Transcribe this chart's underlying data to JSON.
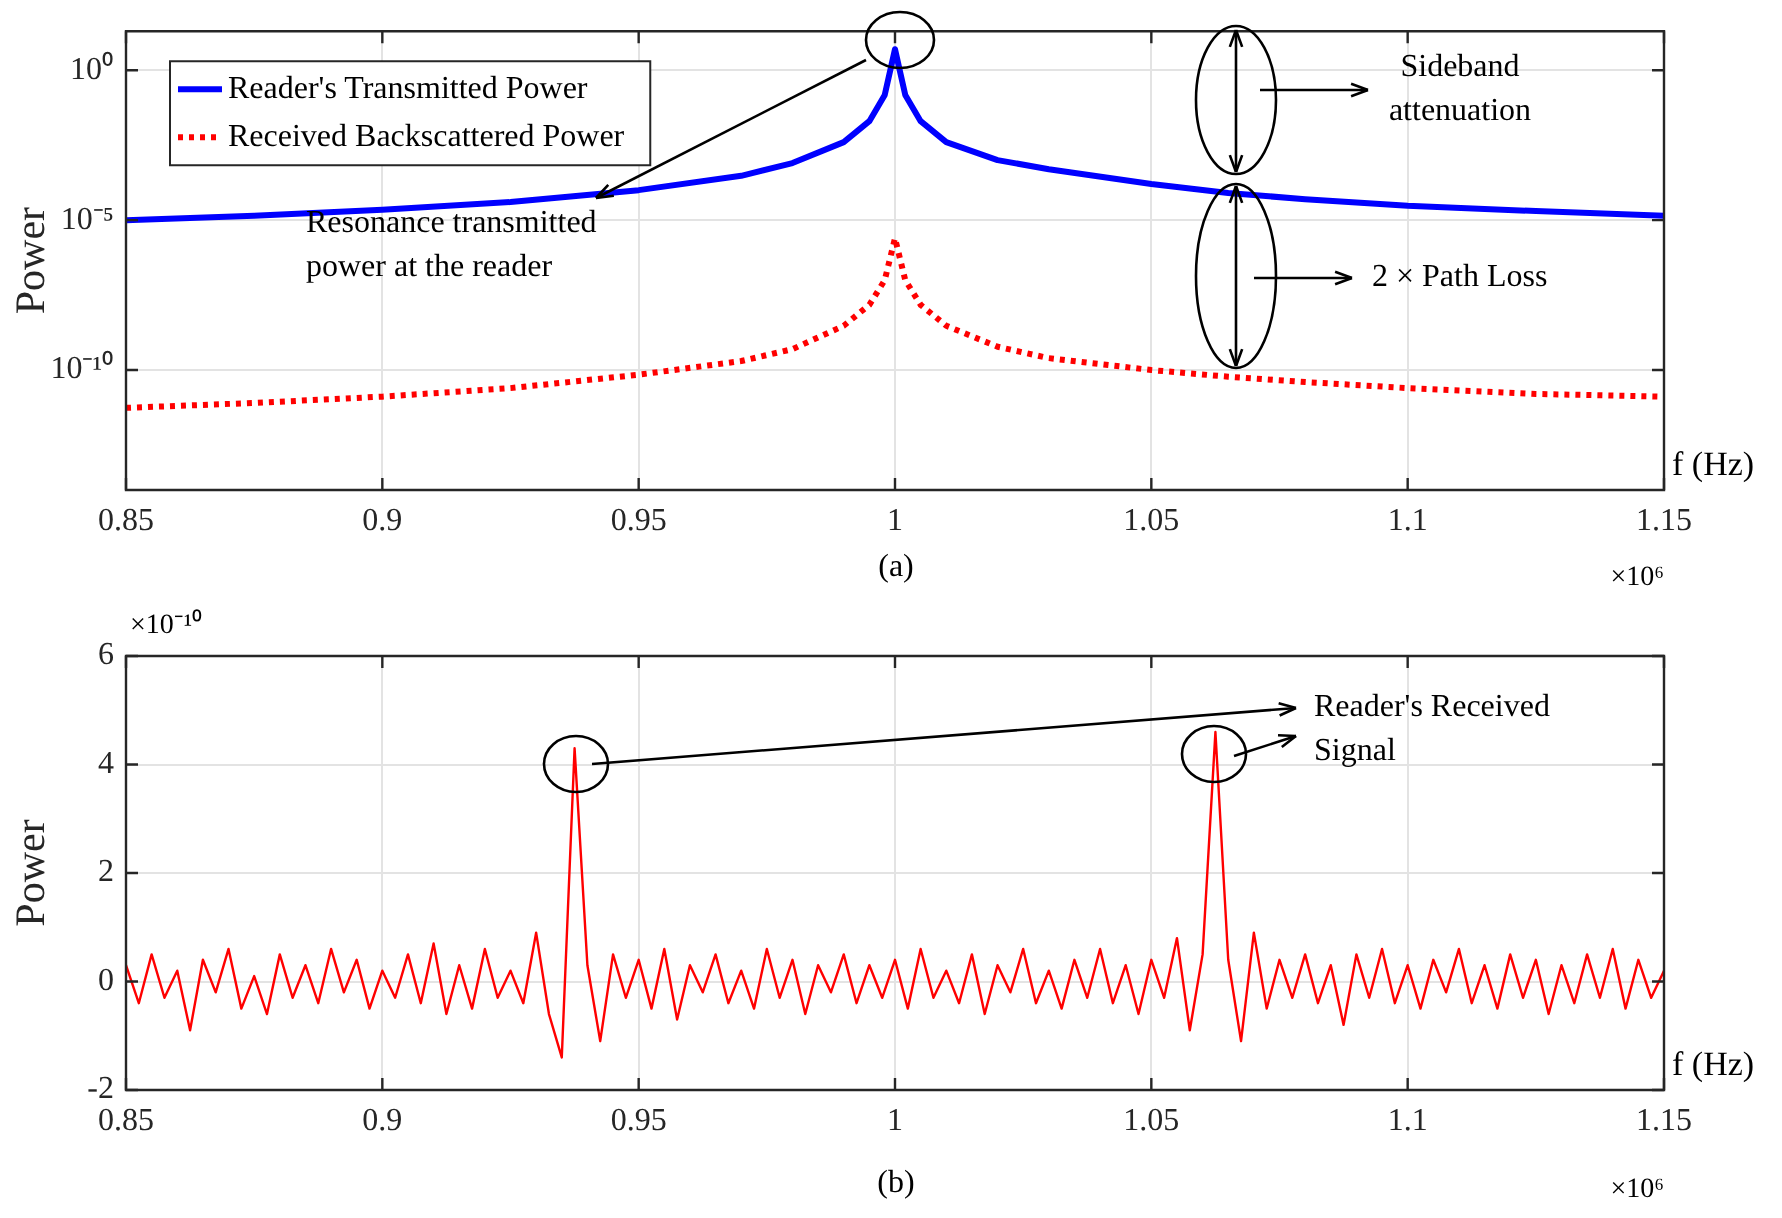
{
  "chart_data": [
    {
      "type": "line",
      "xlabel": "f (Hz)",
      "ylabel": "Power",
      "log": "y",
      "grid": true,
      "legend": "top left",
      "x": [
        0.85,
        0.875,
        0.9,
        0.925,
        0.95,
        0.97,
        0.98,
        0.99,
        0.995,
        0.998,
        1.0,
        1.002,
        1.005,
        1.01,
        1.02,
        1.03,
        1.05,
        1.065,
        1.08,
        1.1,
        1.125,
        1.15
      ],
      "series": [
        {
          "name": "Reader's Transmitted Power",
          "color": "#0000ff",
          "line_style": "solid",
          "values": [
            1e-05,
            1.4e-05,
            2.2e-05,
            4e-05,
            0.0001,
            0.0003,
            0.0008,
            0.004,
            0.02,
            0.15,
            5,
            0.15,
            0.02,
            0.004,
            0.001,
            0.0005,
            0.00016,
            8e-05,
            5e-05,
            3e-05,
            2e-05,
            1.4e-05
          ]
        },
        {
          "name": "Received Backscattered Power",
          "color": "#ff0000",
          "line_style": "dotted",
          "values": [
            5.5e-12,
            8e-12,
            1.3e-11,
            2.5e-11,
            7e-11,
            2e-10,
            5e-10,
            3e-09,
            1.5e-08,
            1e-07,
            2.5e-06,
            1e-07,
            1.5e-08,
            3e-09,
            6e-10,
            2.5e-10,
            1e-10,
            6e-11,
            4e-11,
            2.5e-11,
            1.6e-11,
            1.3e-11
          ]
        }
      ],
      "xlim": [
        0.85,
        1.15
      ],
      "xticks": [
        0.85,
        0.9,
        0.95,
        1,
        1.05,
        1.1,
        1.15
      ],
      "ylim": [
        1e-14,
        20
      ],
      "yticks": [
        {
          "value": 1e-10,
          "label": "10⁻¹⁰"
        },
        {
          "value": 1e-05,
          "label": "10⁻⁵"
        },
        {
          "value": 1,
          "label": "10⁰"
        }
      ],
      "annotations": [
        "Resonance transmitted power at the reader",
        "Sideband attenuation",
        "2 × Path Loss",
        "(a)",
        "×10⁶"
      ]
    },
    {
      "type": "line",
      "xlabel": "f (Hz)",
      "ylabel": "Power",
      "grid": true,
      "x": [
        0.85,
        0.8525,
        0.855,
        0.8575,
        0.86,
        0.8625,
        0.865,
        0.8675,
        0.87,
        0.8725,
        0.875,
        0.8775,
        0.88,
        0.8825,
        0.885,
        0.8875,
        0.89,
        0.8925,
        0.895,
        0.8975,
        0.9,
        0.9025,
        0.905,
        0.9075,
        0.91,
        0.9125,
        0.915,
        0.9175,
        0.92,
        0.9225,
        0.925,
        0.9275,
        0.93,
        0.9325,
        0.935,
        0.9375,
        0.94,
        0.9425,
        0.945,
        0.9475,
        0.95,
        0.9525,
        0.955,
        0.9575,
        0.96,
        0.9625,
        0.965,
        0.9675,
        0.97,
        0.9725,
        0.975,
        0.9775,
        0.98,
        0.9825,
        0.985,
        0.9875,
        0.99,
        0.9925,
        0.995,
        0.9975,
        1.0,
        1.0025,
        1.005,
        1.0075,
        1.01,
        1.0125,
        1.015,
        1.0175,
        1.02,
        1.0225,
        1.025,
        1.0275,
        1.03,
        1.0325,
        1.035,
        1.0375,
        1.04,
        1.0425,
        1.045,
        1.0475,
        1.05,
        1.0525,
        1.055,
        1.0575,
        1.06,
        1.0625,
        1.065,
        1.0675,
        1.07,
        1.0725,
        1.075,
        1.0775,
        1.08,
        1.0825,
        1.085,
        1.0875,
        1.09,
        1.0925,
        1.095,
        1.0975,
        1.1,
        1.1025,
        1.105,
        1.1075,
        1.11,
        1.1125,
        1.115,
        1.1175,
        1.12,
        1.1225,
        1.125,
        1.1275,
        1.13,
        1.1325,
        1.135,
        1.1375,
        1.14,
        1.1425,
        1.145,
        1.1475,
        1.15
      ],
      "series": [
        {
          "color": "#ff0000",
          "line_style": "solid",
          "values": [
            0.3,
            -0.4,
            0.5,
            -0.3,
            0.2,
            -0.9,
            0.4,
            -0.2,
            0.6,
            -0.5,
            0.1,
            -0.6,
            0.5,
            -0.3,
            0.3,
            -0.4,
            0.6,
            -0.2,
            0.4,
            -0.5,
            0.2,
            -0.3,
            0.5,
            -0.4,
            0.7,
            -0.6,
            0.3,
            -0.5,
            0.6,
            -0.3,
            0.2,
            -0.4,
            0.9,
            -0.6,
            -1.4,
            4.3,
            0.3,
            -1.1,
            0.5,
            -0.3,
            0.4,
            -0.5,
            0.6,
            -0.7,
            0.3,
            -0.2,
            0.5,
            -0.4,
            0.2,
            -0.5,
            0.6,
            -0.3,
            0.4,
            -0.6,
            0.3,
            -0.2,
            0.5,
            -0.4,
            0.3,
            -0.3,
            0.4,
            -0.5,
            0.6,
            -0.3,
            0.2,
            -0.4,
            0.5,
            -0.6,
            0.3,
            -0.2,
            0.6,
            -0.4,
            0.2,
            -0.5,
            0.4,
            -0.3,
            0.6,
            -0.4,
            0.3,
            -0.6,
            0.4,
            -0.3,
            0.8,
            -0.9,
            0.5,
            4.6,
            0.4,
            -1.1,
            0.9,
            -0.5,
            0.4,
            -0.3,
            0.5,
            -0.4,
            0.3,
            -0.8,
            0.5,
            -0.3,
            0.6,
            -0.4,
            0.3,
            -0.5,
            0.4,
            -0.2,
            0.6,
            -0.4,
            0.3,
            -0.5,
            0.5,
            -0.3,
            0.4,
            -0.6,
            0.3,
            -0.4,
            0.5,
            -0.3,
            0.6,
            -0.5,
            0.4,
            -0.3,
            0.2
          ]
        }
      ],
      "xlim": [
        0.85,
        1.15
      ],
      "xticks": [
        0.85,
        0.9,
        0.95,
        1,
        1.05,
        1.1,
        1.15
      ],
      "ylim": [
        -2,
        6
      ],
      "yticks": [
        -2,
        0,
        2,
        4,
        6
      ],
      "annotations": [
        "Reader's Received Signal",
        "(b)",
        "×10⁻¹⁰",
        "×10⁶"
      ]
    }
  ]
}
